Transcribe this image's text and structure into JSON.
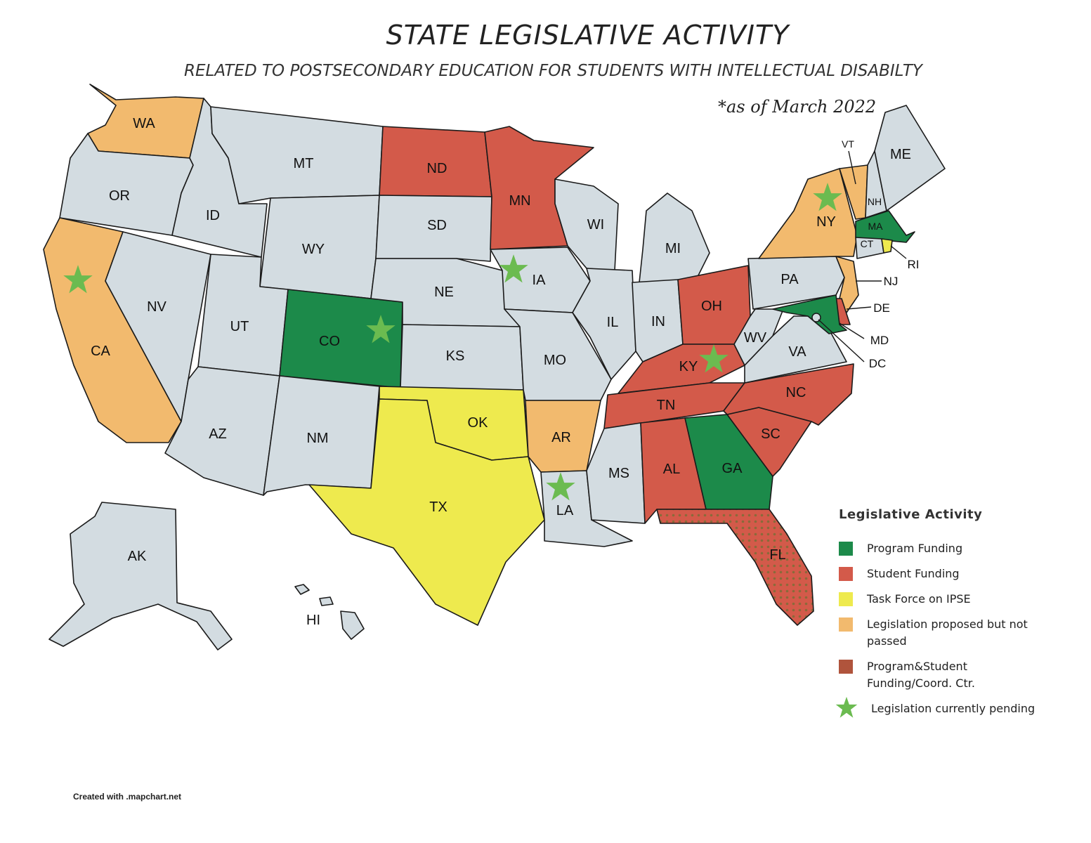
{
  "header": {
    "title": "STATE LEGISLATIVE ACTIVITY",
    "subtitle": "RELATED TO POSTSECONDARY EDUCATION FOR STUDENTS WITH INTELLECTUAL DISABILTY",
    "as_of": "*as of March 2022"
  },
  "credit": "Created with .mapchart.net",
  "colors": {
    "program_funding": "#1c8a4a",
    "student_funding": "#d35a4a",
    "task_force": "#eeea4e",
    "proposed": "#f2ba6e",
    "program_student": "#b0543c",
    "no_activity": "#d3dce1",
    "star": "#6bbb50"
  },
  "legend": {
    "title": "Legislative Activity",
    "items": [
      {
        "label": "Program Funding",
        "color": "#1c8a4a"
      },
      {
        "label": "Student Funding",
        "color": "#d35a4a"
      },
      {
        "label": "Task Force on IPSE",
        "color": "#eeea4e"
      },
      {
        "label": "Legislation proposed but not passed",
        "color": "#f2ba6e"
      },
      {
        "label": "Program&Student Funding/Coord. Ctr.",
        "color": "#b0543c"
      }
    ],
    "pending_label": "Legislation currently pending"
  },
  "states": {
    "WA": "WA",
    "OR": "OR",
    "CA": "CA",
    "NV": "NV",
    "ID": "ID",
    "MT": "MT",
    "WY": "WY",
    "UT": "UT",
    "AZ": "AZ",
    "CO": "CO",
    "NM": "NM",
    "ND": "ND",
    "SD": "SD",
    "NE": "NE",
    "KS": "KS",
    "OK": "OK",
    "TX": "TX",
    "MN": "MN",
    "IA": "IA",
    "MO": "MO",
    "AR": "AR",
    "LA": "LA",
    "WI": "WI",
    "IL": "IL",
    "MS": "MS",
    "MI": "MI",
    "IN": "IN",
    "OH": "OH",
    "KY": "KY",
    "TN": "TN",
    "AL": "AL",
    "GA": "GA",
    "FL": "FL",
    "SC": "SC",
    "NC": "NC",
    "VA": "VA",
    "WV": "WV",
    "PA": "PA",
    "NY": "NY",
    "VT": "VT",
    "NH": "NH",
    "ME": "ME",
    "MA": "MA",
    "CT": "CT",
    "RI": "RI",
    "NJ": "NJ",
    "DE": "DE",
    "MD": "MD",
    "DC": "DC",
    "AK": "AK",
    "HI": "HI"
  },
  "pending_states": [
    "CA",
    "CO",
    "IA",
    "LA",
    "KY",
    "NY"
  ]
}
